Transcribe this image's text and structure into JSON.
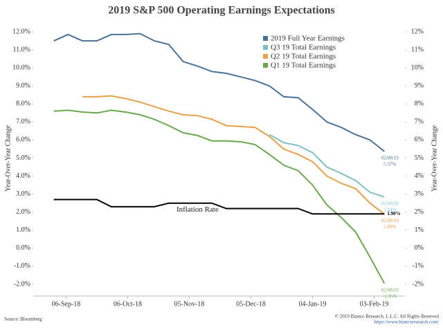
{
  "chart_data": {
    "type": "line",
    "title": "2019 S&P 500 Operating Earnings Expectations",
    "y_label": "Year-Over-Year Change",
    "y2_label": "Year-Over-Year Change",
    "source": "Source: Bloomberg",
    "copyright": "© 2019 Bianco Research, L.L.C. All Rights Reserved",
    "url": "https://www.biancoresearch.com/",
    "legend": "upper right",
    "x": [
      "2018-08-31",
      "2018-09-07",
      "2018-09-14",
      "2018-09-21",
      "2018-09-28",
      "2018-10-05",
      "2018-10-12",
      "2018-10-19",
      "2018-10-26",
      "2018-11-02",
      "2018-11-09",
      "2018-11-16",
      "2018-11-23",
      "2018-11-30",
      "2018-12-07",
      "2018-12-14",
      "2018-12-21",
      "2018-12-28",
      "2019-01-04",
      "2019-01-11",
      "2019-01-18",
      "2019-01-25",
      "2019-02-01",
      "2019-02-08"
    ],
    "xlim": [
      "2018-08-21",
      "2019-02-18"
    ],
    "xticks": [
      {
        "value": "2018-09-06",
        "label": "06-Sep-18"
      },
      {
        "value": "2018-10-06",
        "label": "06-Oct-18"
      },
      {
        "value": "2018-11-05",
        "label": "05-Nov-18"
      },
      {
        "value": "2018-12-05",
        "label": "05-Dec-18"
      },
      {
        "value": "2019-01-04",
        "label": "04-Jan-19"
      },
      {
        "value": "2019-02-03",
        "label": "03-Feb-19"
      }
    ],
    "ylim": [
      -2.5,
      12.5
    ],
    "yticks": [
      {
        "value": 12,
        "label": "12.0%"
      },
      {
        "value": 11,
        "label": "11.0%"
      },
      {
        "value": 10,
        "label": "10.0%"
      },
      {
        "value": 9,
        "label": "9.0%"
      },
      {
        "value": 8,
        "label": "8.0%"
      },
      {
        "value": 7,
        "label": "7.0%"
      },
      {
        "value": 6,
        "label": "6.0%"
      },
      {
        "value": 5,
        "label": "5.0%"
      },
      {
        "value": 4,
        "label": "4.0%"
      },
      {
        "value": 3,
        "label": "3.0%"
      },
      {
        "value": 2,
        "label": "2.0%"
      },
      {
        "value": 1,
        "label": "1.0%"
      },
      {
        "value": 0,
        "label": "0.0%"
      },
      {
        "value": -1,
        "label": "-1.0%"
      },
      {
        "value": -2,
        "label": "-2.0%"
      }
    ],
    "y2lim": [
      -2.5,
      12.5
    ],
    "y2ticks": [
      {
        "value": 12,
        "label": "12%"
      },
      {
        "value": 11,
        "label": "11%"
      },
      {
        "value": 10,
        "label": "10%"
      },
      {
        "value": 9,
        "label": "9%"
      },
      {
        "value": 8,
        "label": "8%"
      },
      {
        "value": 7,
        "label": "7%"
      },
      {
        "value": 6,
        "label": "6%"
      },
      {
        "value": 5,
        "label": "5%"
      },
      {
        "value": 4,
        "label": "4%"
      },
      {
        "value": 3,
        "label": "3%"
      },
      {
        "value": 2,
        "label": "2%"
      },
      {
        "value": 1,
        "label": "1%"
      },
      {
        "value": 0,
        "label": "0%"
      },
      {
        "value": -1,
        "label": "-1%"
      },
      {
        "value": -2,
        "label": "-2%"
      }
    ],
    "series": [
      {
        "name": "2019 Full Year Earnings",
        "color": "#4a7398",
        "end_date": "02/08/19",
        "values": [
          11.5,
          11.85,
          11.5,
          11.5,
          11.85,
          11.85,
          11.9,
          11.5,
          11.3,
          10.35,
          10.1,
          9.8,
          9.7,
          9.5,
          9.3,
          9.0,
          8.4,
          8.35,
          7.7,
          7.0,
          6.7,
          6.3,
          6.0,
          5.37
        ],
        "value_labels": [
          null,
          null,
          null,
          null,
          null,
          null,
          null,
          null,
          null,
          null,
          null,
          null,
          null,
          null,
          null,
          null,
          null,
          null,
          null,
          null,
          null,
          null,
          null,
          "5.37%"
        ]
      },
      {
        "name": "Q3 19 Total Earnings",
        "color": "#7fbfc4",
        "end_date": "02/08/19",
        "values": [
          null,
          null,
          null,
          null,
          null,
          null,
          null,
          null,
          null,
          null,
          null,
          null,
          null,
          null,
          null,
          6.3,
          5.85,
          5.7,
          5.3,
          4.5,
          4.15,
          3.75,
          3.1,
          2.84
        ],
        "value_labels": [
          null,
          null,
          null,
          null,
          null,
          null,
          null,
          null,
          null,
          null,
          null,
          null,
          null,
          null,
          null,
          null,
          null,
          null,
          null,
          null,
          null,
          null,
          null,
          "2.84%"
        ]
      },
      {
        "name": "Q2 19 Total Earnings",
        "color": "#e8a04a",
        "end_date": "02/08/19",
        "values": [
          null,
          null,
          8.4,
          8.4,
          8.45,
          8.3,
          8.1,
          7.85,
          7.6,
          7.4,
          7.35,
          7.15,
          6.8,
          6.75,
          6.7,
          6.2,
          5.5,
          5.2,
          4.8,
          4.0,
          3.6,
          3.3,
          2.5,
          1.89
        ],
        "value_labels": [
          null,
          null,
          null,
          null,
          null,
          null,
          null,
          null,
          null,
          null,
          null,
          null,
          null,
          null,
          null,
          null,
          null,
          null,
          null,
          null,
          null,
          null,
          null,
          "1.89%"
        ]
      },
      {
        "name": "Q1 19 Total Earnings",
        "color": "#6aa84f",
        "end_date": "02/08/19",
        "values": [
          7.6,
          7.65,
          7.55,
          7.5,
          7.65,
          7.55,
          7.4,
          7.15,
          6.8,
          6.4,
          6.25,
          5.95,
          5.95,
          5.9,
          5.75,
          5.2,
          4.6,
          4.3,
          3.5,
          2.4,
          1.7,
          0.9,
          -0.5,
          -1.95
        ],
        "value_labels": [
          null,
          null,
          null,
          null,
          null,
          null,
          null,
          null,
          null,
          null,
          null,
          null,
          null,
          null,
          null,
          null,
          null,
          null,
          null,
          null,
          null,
          null,
          null,
          "-1.95%"
        ]
      },
      {
        "name": "Inflation Rate",
        "color": "#000000",
        "in_legend": false,
        "values": [
          2.7,
          2.7,
          2.7,
          2.7,
          2.3,
          2.3,
          2.3,
          2.3,
          2.5,
          2.5,
          2.5,
          2.5,
          2.2,
          2.2,
          2.2,
          2.2,
          2.2,
          2.2,
          1.9,
          1.9,
          1.9,
          1.9,
          1.9,
          1.9
        ],
        "value_labels": [
          null,
          null,
          null,
          null,
          null,
          null,
          null,
          null,
          null,
          null,
          null,
          null,
          null,
          null,
          null,
          null,
          null,
          null,
          null,
          null,
          null,
          null,
          null,
          "1.90%"
        ]
      }
    ]
  }
}
